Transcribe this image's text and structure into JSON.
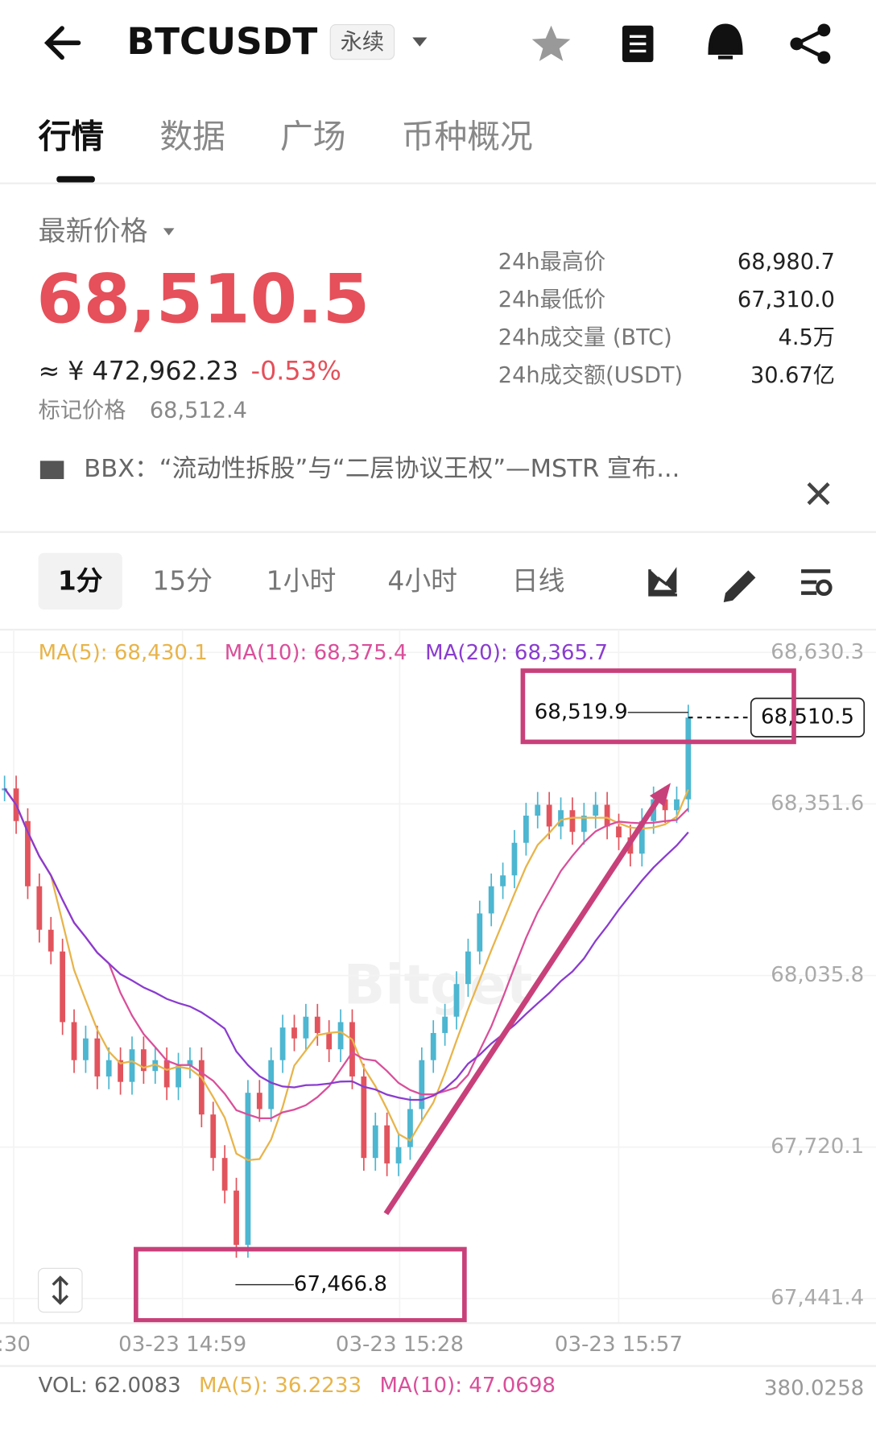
{
  "header": {
    "symbol": "BTCUSDT",
    "tag": "永续"
  },
  "tabs": [
    "行情",
    "数据",
    "广场",
    "币种概况"
  ],
  "price": {
    "label": "最新价格",
    "last": "68,510.5",
    "cny": "≈ ¥ 472,962.23",
    "change": "-0.53%",
    "mark_label": "标记价格",
    "mark": "68,512.4"
  },
  "stats": [
    {
      "label": "24h最高价",
      "value": "68,980.7"
    },
    {
      "label": "24h最低价",
      "value": "67,310.0"
    },
    {
      "label": "24h成交量 (BTC)",
      "value": "4.5万"
    },
    {
      "label": "24h成交额(USDT)",
      "value": "30.67亿"
    }
  ],
  "news": "BBX：“流动性拆股”与“二层协议王权”—MSTR 宣布...",
  "intervals": [
    "1分",
    "15分",
    "1小时",
    "4小时",
    "日线"
  ],
  "chart_data": {
    "type": "candlestick",
    "ma_labels": [
      "MA(5): 68,430.1",
      "MA(10): 68,375.4",
      "MA(20): 68,365.7"
    ],
    "watermark": "Bitget",
    "ylim": [
      67441.4,
      68630.3
    ],
    "yticks": [
      {
        "value": 68630.3,
        "label": "68,630.3"
      },
      {
        "value": 68351.6,
        "label": "68,351.6"
      },
      {
        "value": 68035.8,
        "label": "68,035.8"
      },
      {
        "value": 67720.1,
        "label": "67,720.1"
      },
      {
        "value": 67441.4,
        "label": "67,441.4"
      }
    ],
    "xtick_labels": [
      ":30",
      "03-23 14:59",
      "03-23 15:28",
      "03-23 15:57"
    ],
    "closes": [
      68380,
      68320,
      68200,
      68120,
      68080,
      67950,
      67880,
      67920,
      67850,
      67880,
      67840,
      67900,
      67860,
      67880,
      67830,
      67870,
      67880,
      67780,
      67700,
      67640,
      67540,
      67820,
      67790,
      67880,
      67940,
      67920,
      67960,
      67930,
      67900,
      67950,
      67850,
      67700,
      67760,
      67690,
      67720,
      67790,
      67880,
      67930,
      67960,
      68020,
      68080,
      68150,
      68200,
      68220,
      68280,
      68330,
      68350,
      68310,
      68340,
      68300,
      68330,
      68350,
      68310,
      68290,
      68260,
      68320,
      68360,
      68340,
      68360,
      68510.5
    ],
    "high": {
      "value": 68519.9,
      "label": "68,519.9"
    },
    "low": {
      "value": 67466.8,
      "label": "67,466.8"
    },
    "last": {
      "value": 68510.5,
      "label": "68,510.5"
    },
    "volume_labels": [
      "VOL: 62.0083",
      "MA(5): 36.2233",
      "MA(10): 47.0698"
    ],
    "volume_max": "380.0258"
  }
}
